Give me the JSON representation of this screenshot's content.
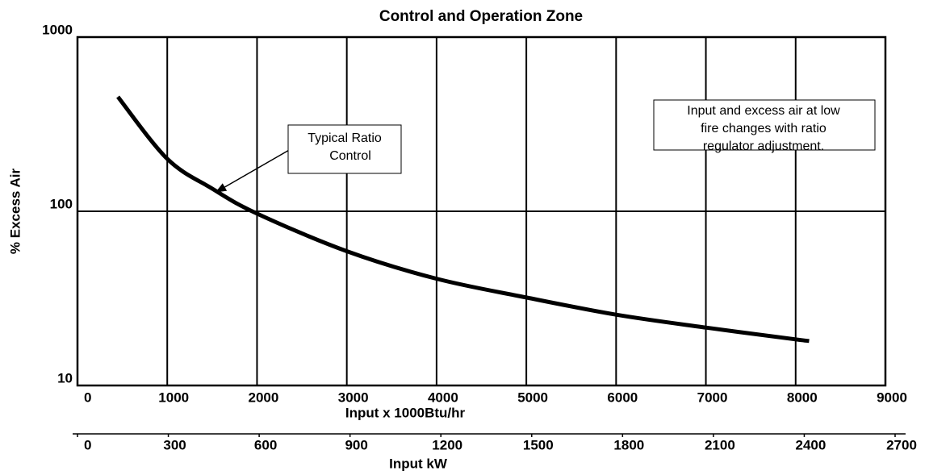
{
  "chart_data": {
    "type": "line",
    "title": "Control and Operation Zone",
    "xlabel": "Input x 1000Btu/hr",
    "ylabel": "% Excess Air",
    "x2label": "Input kW",
    "x": [
      450,
      1000,
      1500,
      2000,
      3000,
      4000,
      5000,
      6000,
      7000,
      8000,
      8150
    ],
    "series": [
      {
        "name": "Typical Ratio Control",
        "color": "#000000",
        "values": [
          454,
          200,
          135,
          97,
          59,
          41,
          32,
          25.5,
          21.5,
          18.4,
          18
        ]
      }
    ],
    "xlim": [
      0,
      9000
    ],
    "xticks": [
      0,
      1000,
      2000,
      3000,
      4000,
      5000,
      6000,
      7000,
      8000,
      9000
    ],
    "x2lim": [
      0,
      2700
    ],
    "x2ticks": [
      0,
      300,
      600,
      900,
      1200,
      1500,
      1800,
      2100,
      2400,
      2700
    ],
    "ylim": [
      10,
      1000
    ],
    "yticks": [
      10,
      100,
      1000
    ],
    "log_y": true,
    "grid": true,
    "annotations": [
      {
        "lines": [
          "Typical Ratio",
          "Control"
        ]
      },
      {
        "lines": [
          "Input and excess air at low",
          "fire changes with ratio",
          "regulator adjustment."
        ]
      }
    ]
  }
}
